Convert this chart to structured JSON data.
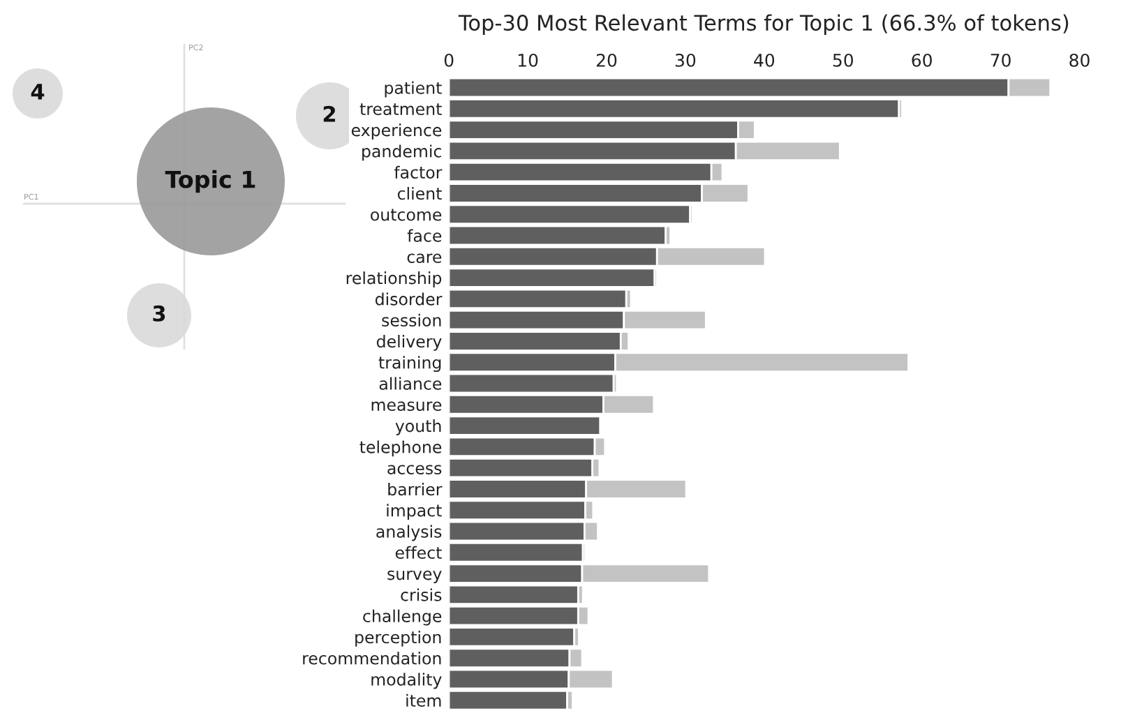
{
  "chart_data": [
    {
      "type": "other",
      "xlabel": "PC1",
      "ylabel": "PC2",
      "colors": [
        "#999999",
        "#d9d9d9",
        "#d9d9d9",
        "#d9d9d9"
      ],
      "annotations": [
        "Topic 1",
        "2",
        "3",
        "4"
      ]
    },
    {
      "type": "bar",
      "orientation": "horizontal",
      "stacked": true,
      "title": "Top-30 Most Relevant Terms for Topic 1 (66.3% of tokens)",
      "categories": [
        "patient",
        "treatment",
        "experience",
        "pandemic",
        "factor",
        "client",
        "outcome",
        "face",
        "care",
        "relationship",
        "disorder",
        "session",
        "delivery",
        "training",
        "alliance",
        "measure",
        "youth",
        "telephone",
        "access",
        "barrier",
        "impact",
        "analysis",
        "effect",
        "survey",
        "crisis",
        "challenge",
        "perception",
        "recommendation",
        "modality",
        "item"
      ],
      "series": [
        {
          "color": "#5f5f5f",
          "values": [
            71.0,
            57.1,
            36.7,
            36.4,
            33.3,
            32.1,
            30.6,
            27.5,
            26.4,
            26.1,
            22.5,
            22.2,
            21.8,
            21.1,
            20.9,
            19.6,
            19.2,
            18.5,
            18.2,
            17.4,
            17.3,
            17.2,
            17.0,
            16.9,
            16.4,
            16.4,
            15.9,
            15.3,
            15.2,
            15.0
          ]
        },
        {
          "color": "#c3c3c3",
          "values": [
            5.3,
            0.4,
            2.1,
            13.2,
            1.4,
            5.9,
            0.3,
            0.6,
            13.7,
            0.3,
            0.6,
            10.4,
            1.0,
            37.2,
            0.4,
            6.4,
            0.2,
            1.3,
            0.9,
            12.7,
            1.0,
            1.7,
            0.3,
            16.1,
            0.6,
            1.3,
            0.6,
            1.6,
            5.6,
            0.7
          ]
        }
      ],
      "xlim": [
        0,
        80
      ],
      "xticks": [
        0,
        10,
        20,
        30,
        40,
        50,
        60,
        70,
        80
      ],
      "grid": false,
      "legend": false
    }
  ]
}
